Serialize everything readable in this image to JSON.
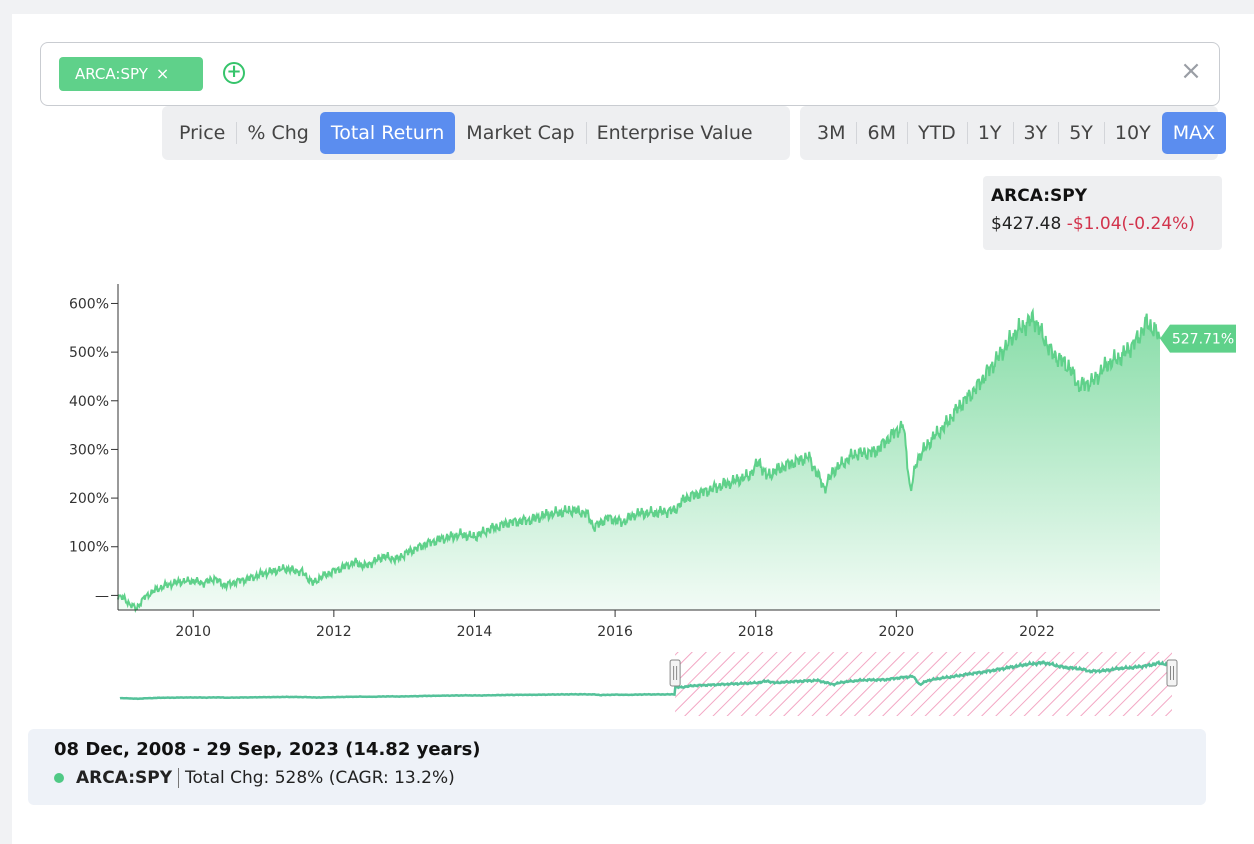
{
  "ticker": {
    "symbol": "ARCA:SPY",
    "remove_glyph": "×",
    "add_glyph": "+",
    "clear_glyph": "×"
  },
  "metric_options": [
    "Price",
    "% Chg",
    "Total Return",
    "Market Cap",
    "Enterprise Value"
  ],
  "metric_selected": "Total Return",
  "range_options": [
    "3M",
    "6M",
    "YTD",
    "1Y",
    "3Y",
    "5Y",
    "10Y",
    "MAX"
  ],
  "range_selected": "MAX",
  "tooltip": {
    "name": "ARCA:SPY",
    "price": "$427.48",
    "change": "-$1.04(-0.24%)"
  },
  "colors": {
    "series": "#5fd18a",
    "accent": "#5b8def",
    "negative": "#d2334c",
    "navigator": "#55c29a",
    "selection_hatch": "#f3a7c4"
  },
  "chart_data": {
    "type": "area",
    "y_axis": {
      "ticks": [
        0,
        100,
        200,
        300,
        400,
        500,
        600
      ],
      "tick_labels": [
        "—",
        "100%",
        "200%",
        "300%",
        "400%",
        "500%",
        "600%"
      ],
      "ylim": [
        -30,
        640
      ],
      "unit": "%"
    },
    "x_axis": {
      "ticks": [
        2010,
        2012,
        2014,
        2016,
        2018,
        2020,
        2022
      ],
      "tick_labels": [
        "2010",
        "2012",
        "2014",
        "2016",
        "2018",
        "2020",
        "2022"
      ],
      "xlim": [
        2008.93,
        2023.75
      ]
    },
    "series": [
      {
        "name": "ARCA:SPY",
        "x": [
          2008.93,
          2009.0,
          2009.1,
          2009.19,
          2009.3,
          2009.45,
          2009.6,
          2009.8,
          2010.0,
          2010.15,
          2010.3,
          2010.45,
          2010.6,
          2010.8,
          2011.0,
          2011.3,
          2011.55,
          2011.7,
          2011.85,
          2012.0,
          2012.3,
          2012.45,
          2012.7,
          2012.9,
          2013.0,
          2013.3,
          2013.5,
          2013.8,
          2014.0,
          2014.2,
          2014.5,
          2014.8,
          2015.0,
          2015.4,
          2015.6,
          2015.7,
          2015.9,
          2016.1,
          2016.3,
          2016.6,
          2016.85,
          2017.0,
          2017.3,
          2017.6,
          2017.9,
          2018.05,
          2018.15,
          2018.4,
          2018.75,
          2018.98,
          2019.1,
          2019.4,
          2019.7,
          2019.9,
          2020.1,
          2020.2,
          2020.3,
          2020.5,
          2020.7,
          2020.9,
          2021.1,
          2021.4,
          2021.7,
          2021.95,
          2022.2,
          2022.45,
          2022.6,
          2022.8,
          2023.0,
          2023.2,
          2023.45,
          2023.55,
          2023.68,
          2023.75
        ],
        "y": [
          0,
          -5,
          -18,
          -27,
          -5,
          10,
          20,
          28,
          30,
          25,
          35,
          20,
          28,
          35,
          45,
          55,
          48,
          25,
          40,
          50,
          68,
          60,
          80,
          74,
          85,
          105,
          115,
          125,
          120,
          135,
          150,
          155,
          165,
          175,
          168,
          140,
          160,
          150,
          168,
          170,
          175,
          200,
          215,
          230,
          245,
          275,
          245,
          265,
          285,
          220,
          255,
          290,
          295,
          325,
          350,
          215,
          280,
          320,
          350,
          390,
          420,
          480,
          540,
          570,
          500,
          470,
          430,
          440,
          475,
          490,
          530,
          560,
          545,
          527.71
        ],
        "last_label": "527.71%"
      }
    ],
    "navigator": {
      "selection_start": 2016.75,
      "selection_end": 2023.75
    }
  },
  "summary": {
    "date_range": "08 Dec, 2008 - 29 Sep, 2023 (14.82 years)",
    "ticker": "ARCA:SPY",
    "total_change": "Total Chg: 528% (CAGR: 13.2%)"
  }
}
